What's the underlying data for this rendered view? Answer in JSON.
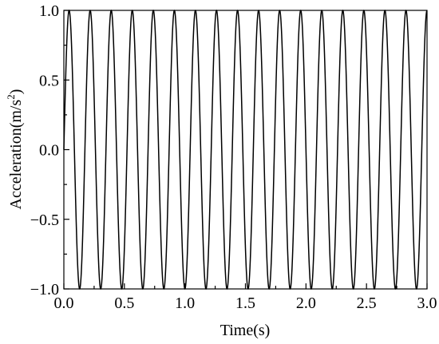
{
  "chart_data": {
    "type": "line",
    "title": "",
    "xlabel": "Time(s)",
    "ylabel_main": "Acceleration(m/s",
    "ylabel_sup": "2",
    "ylabel_close": ")",
    "xlim": [
      0.0,
      3.0
    ],
    "ylim": [
      -1.0,
      1.0
    ],
    "x_ticks": [
      "0.0",
      "0.5",
      "1.0",
      "1.5",
      "2.0",
      "2.5",
      "3.0"
    ],
    "y_ticks": [
      "-1.0",
      "-0.5",
      "0.0",
      "0.5",
      "1.0"
    ],
    "grid": false,
    "series": [
      {
        "function": "sine",
        "amplitude": 1.0,
        "frequency_hz": 5.75,
        "phase": 0.0,
        "x_start": 0.0,
        "x_end": 3.0
      }
    ],
    "colors": {
      "line": "#000000",
      "axis": "#000000"
    }
  }
}
